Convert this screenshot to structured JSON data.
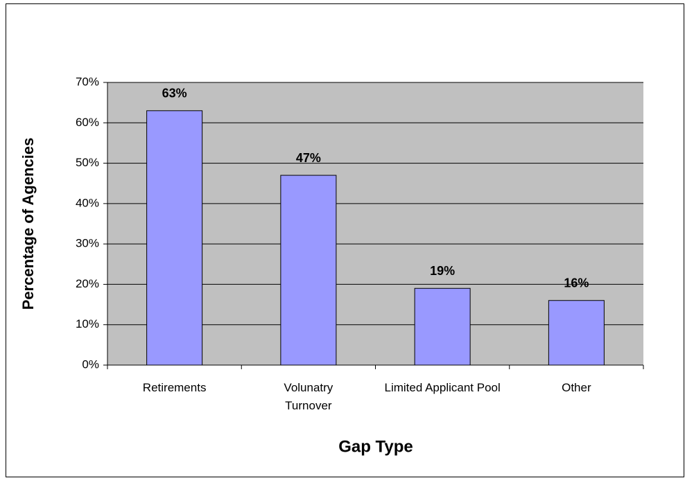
{
  "chart_data": {
    "type": "bar",
    "categories": [
      "Retirements",
      "Volunatry Turnover",
      "Limited Applicant Pool",
      "Other"
    ],
    "values": [
      63,
      47,
      19,
      16
    ],
    "value_labels": [
      "63%",
      "47%",
      "19%",
      "16%"
    ],
    "color": "#9999ff",
    "ylim": [
      0,
      70
    ],
    "yticks": [
      {
        "value": 0,
        "label": "0%"
      },
      {
        "value": 10,
        "label": "10%"
      },
      {
        "value": 20,
        "label": "20%"
      },
      {
        "value": 30,
        "label": "30%"
      },
      {
        "value": 40,
        "label": "40%"
      },
      {
        "value": 50,
        "label": "50%"
      },
      {
        "value": 60,
        "label": "60%"
      },
      {
        "value": 70,
        "label": "70%"
      }
    ],
    "grid": true,
    "y_label": "Percentage of Agencies",
    "x_label": "Gap Type"
  }
}
